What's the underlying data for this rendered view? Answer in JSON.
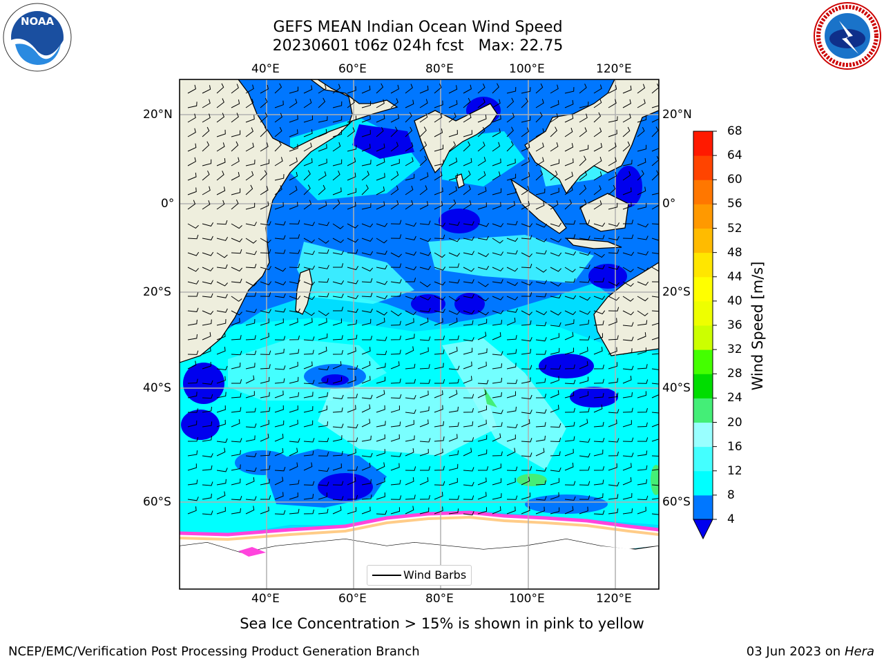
{
  "title": {
    "line1": "GEFS MEAN Indian Ocean Wind Speed",
    "line2": "20230601 t06z 024h fcst   Max: 22.75"
  },
  "map": {
    "lon_ticks": [
      "40°E",
      "60°E",
      "80°E",
      "100°E",
      "120°E"
    ],
    "lat_ticks": [
      "20°N",
      "0°",
      "20°S",
      "40°S",
      "60°S"
    ],
    "colors": {
      "land": "#eeeedd",
      "ice": "#ffffff",
      "gridline": "#b0b0b0",
      "coastline": "#000000"
    }
  },
  "legend": {
    "label": "Wind Barbs"
  },
  "colorbar": {
    "title": "Wind Speed [m/s]",
    "ticks": [
      "4",
      "8",
      "12",
      "16",
      "20",
      "24",
      "28",
      "32",
      "36",
      "40",
      "44",
      "48",
      "52",
      "56",
      "60",
      "64",
      "68"
    ],
    "colors": [
      "#0077ff",
      "#00ffff",
      "#44ffff",
      "#99ffff",
      "#44ee77",
      "#00dd00",
      "#44ff00",
      "#ccff00",
      "#eeff00",
      "#ffff00",
      "#ffe600",
      "#ffbb00",
      "#ff9900",
      "#ff7700",
      "#ff4400",
      "#ff1a00",
      "#ff0000"
    ],
    "min_color": "#0000ee"
  },
  "caption": "Sea Ice Concentration > 15% is shown in pink to yellow",
  "footer": {
    "left": "NCEP/EMC/Verification Post Processing Product Generation Branch",
    "right_date": "03 Jun 2023 on",
    "right_host": "Hera"
  },
  "logos": {
    "noaa": "NOAA",
    "nws_text": "NATIONAL WEATHER SERVICE"
  }
}
